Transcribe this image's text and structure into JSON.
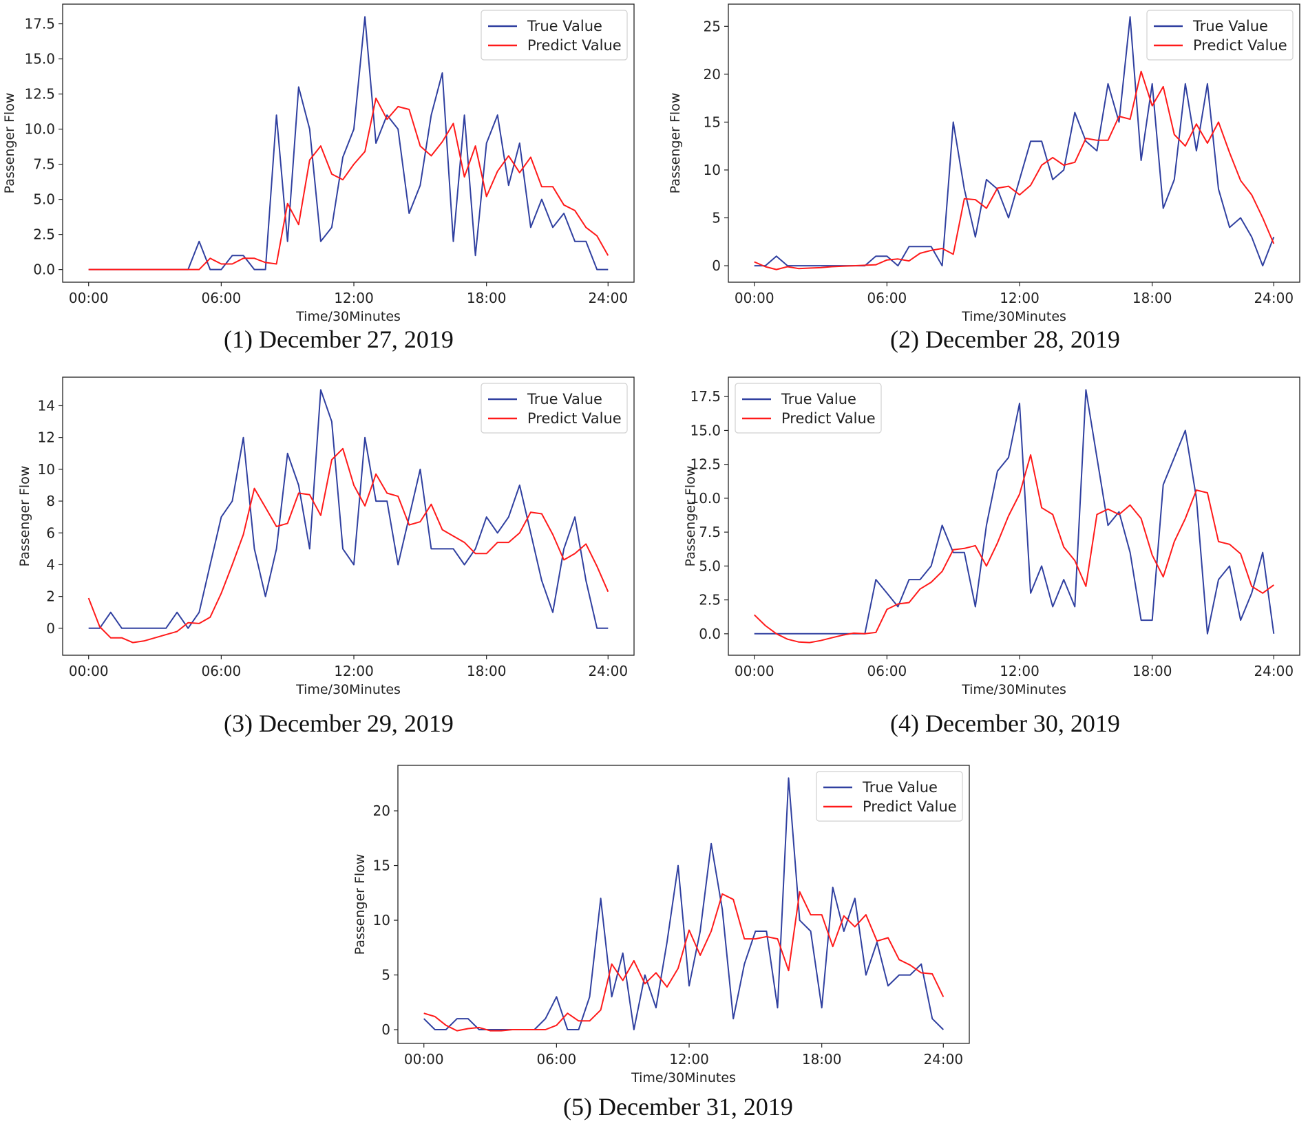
{
  "legend": {
    "true_label": "True Value",
    "predict_label": "Predict Value"
  },
  "colors": {
    "true": "#3040a0",
    "predict": "#ff1a1a"
  },
  "captions": [
    "(1) December 27, 2019",
    "(2) December 28, 2019",
    "(3) December 29, 2019",
    "(4) December 30, 2019",
    "(5) December 31, 2019"
  ],
  "chart_data": [
    {
      "type": "line",
      "title": "(1) December 27, 2019",
      "xlabel": "Time/30Minutes",
      "ylabel": "Passenger Flow",
      "xticks": [
        0,
        12,
        24,
        36,
        47
      ],
      "xtick_labels": [
        "00:00",
        "06:00",
        "12:00",
        "18:00",
        "24:00"
      ],
      "yticks": [
        0,
        2.5,
        5,
        7.5,
        10,
        12.5,
        15,
        17.5
      ],
      "ytick_labels": [
        "0.0",
        "2.5",
        "5.0",
        "7.5",
        "10.0",
        "12.5",
        "15.0",
        "17.5"
      ],
      "legend_position": "top-right",
      "series": [
        {
          "name": "True Value",
          "values": [
            0,
            0,
            0,
            0,
            0,
            0,
            0,
            0,
            0,
            0,
            2,
            0,
            0,
            1,
            1,
            0,
            0,
            11,
            2,
            13,
            10,
            2,
            3,
            8,
            10,
            18,
            9,
            11,
            10,
            4,
            6,
            11,
            14,
            2,
            11,
            1,
            9,
            11,
            6,
            9,
            3,
            5,
            3,
            4,
            2,
            2,
            0,
            0
          ]
        },
        {
          "name": "Predict Value",
          "values": [
            0,
            0,
            0,
            0,
            0,
            0,
            0,
            0,
            0,
            0,
            0,
            0.8,
            0.4,
            0.4,
            0.8,
            0.8,
            0.5,
            0.4,
            4.7,
            3.2,
            7.8,
            8.8,
            6.8,
            6.4,
            7.5,
            8.4,
            12.2,
            10.7,
            11.6,
            11.4,
            8.8,
            8.1,
            9.1,
            10.4,
            6.6,
            8.8,
            5.2,
            7.0,
            8.1,
            6.9,
            8.0,
            5.9,
            5.9,
            4.6,
            4.2,
            3.0,
            2.4,
            1.0
          ]
        }
      ]
    },
    {
      "type": "line",
      "title": "(2) December 28, 2019",
      "xlabel": "Time/30Minutes",
      "ylabel": "Passenger Flow",
      "xticks": [
        0,
        12,
        24,
        36,
        47
      ],
      "xtick_labels": [
        "00:00",
        "06:00",
        "12:00",
        "18:00",
        "24:00"
      ],
      "yticks": [
        0,
        5,
        10,
        15,
        20,
        25
      ],
      "ytick_labels": [
        "0",
        "5",
        "10",
        "15",
        "20",
        "25"
      ],
      "legend_position": "top-right",
      "series": [
        {
          "name": "True Value",
          "values": [
            0,
            0,
            1,
            0,
            0,
            0,
            0,
            0,
            0,
            0,
            0,
            1,
            1,
            0,
            2,
            2,
            2,
            0,
            15,
            8,
            3,
            9,
            8,
            5,
            9,
            13,
            13,
            9,
            10,
            16,
            13,
            12,
            19,
            15,
            26,
            11,
            19,
            6,
            9,
            19,
            12,
            19,
            8,
            4,
            5,
            3,
            0,
            3
          ]
        },
        {
          "name": "Predict Value",
          "values": [
            0.4,
            -0.1,
            -0.4,
            -0.1,
            -0.3,
            -0.25,
            -0.2,
            -0.1,
            -0.05,
            0,
            0.05,
            0.1,
            0.6,
            0.7,
            0.5,
            1.3,
            1.6,
            1.8,
            1.2,
            7.0,
            6.9,
            6.0,
            8.1,
            8.3,
            7.4,
            8.4,
            10.5,
            11.3,
            10.5,
            10.8,
            13.3,
            13.1,
            13.1,
            15.6,
            15.3,
            20.3,
            16.7,
            18.7,
            13.7,
            12.5,
            14.8,
            12.8,
            15.0,
            11.8,
            8.9,
            7.4,
            5.0,
            2.3
          ]
        }
      ]
    },
    {
      "type": "line",
      "title": "(3) December 29, 2019",
      "xlabel": "Time/30Minutes",
      "ylabel": "Passenger Flow",
      "xticks": [
        0,
        12,
        24,
        36,
        47
      ],
      "xtick_labels": [
        "00:00",
        "06:00",
        "12:00",
        "18:00",
        "24:00"
      ],
      "yticks": [
        0,
        2,
        4,
        6,
        8,
        10,
        12,
        14
      ],
      "ytick_labels": [
        "0",
        "2",
        "4",
        "6",
        "8",
        "10",
        "12",
        "14"
      ],
      "legend_position": "top-right",
      "series": [
        {
          "name": "True Value",
          "values": [
            0,
            0,
            1,
            0,
            0,
            0,
            0,
            0,
            1,
            0,
            1,
            4,
            7,
            8,
            12,
            5,
            2,
            5,
            11,
            9,
            5,
            15,
            13,
            5,
            4,
            12,
            8,
            8,
            4,
            7,
            10,
            5,
            5,
            5,
            4,
            5,
            7,
            6,
            7,
            9,
            6,
            3,
            1,
            5,
            7,
            3,
            0,
            0
          ]
        },
        {
          "name": "Predict Value",
          "values": [
            1.9,
            0.1,
            -0.6,
            -0.6,
            -0.9,
            -0.8,
            -0.6,
            -0.4,
            -0.2,
            0.35,
            0.3,
            0.7,
            2.2,
            4.0,
            5.9,
            8.8,
            7.6,
            6.4,
            6.6,
            8.5,
            8.4,
            7.1,
            10.6,
            11.3,
            9.0,
            7.7,
            9.7,
            8.5,
            8.3,
            6.5,
            6.7,
            7.8,
            6.2,
            5.8,
            5.4,
            4.7,
            4.7,
            5.4,
            5.4,
            6.0,
            7.3,
            7.2,
            5.9,
            4.3,
            4.7,
            5.3,
            3.9,
            2.3
          ]
        }
      ]
    },
    {
      "type": "line",
      "title": "(4) December 30, 2019",
      "xlabel": "Time/30Minutes",
      "ylabel": "Passenger Flow",
      "xticks": [
        0,
        12,
        24,
        36,
        47
      ],
      "xtick_labels": [
        "00:00",
        "06:00",
        "12:00",
        "18:00",
        "24:00"
      ],
      "yticks": [
        0,
        2.5,
        5,
        7.5,
        10,
        12.5,
        15,
        17.5
      ],
      "ytick_labels": [
        "0.0",
        "2.5",
        "5.0",
        "7.5",
        "10.0",
        "12.5",
        "15.0",
        "17.5"
      ],
      "legend_position": "top-left",
      "series": [
        {
          "name": "True Value",
          "values": [
            0,
            0,
            0,
            0,
            0,
            0,
            0,
            0,
            0,
            0,
            0,
            4,
            3,
            2,
            4,
            4,
            5,
            8,
            6,
            6,
            2,
            8,
            12,
            13,
            17,
            3,
            5,
            2,
            4,
            2,
            18,
            13,
            8,
            9,
            6,
            1,
            1,
            11,
            13,
            15,
            10,
            0,
            4,
            5,
            1,
            3,
            6,
            0
          ]
        },
        {
          "name": "Predict Value",
          "values": [
            1.4,
            0.6,
            0,
            -0.4,
            -0.6,
            -0.65,
            -0.5,
            -0.3,
            -0.1,
            0.05,
            0,
            0.1,
            1.8,
            2.2,
            2.3,
            3.3,
            3.8,
            4.6,
            6.2,
            6.3,
            6.5,
            5.0,
            6.7,
            8.7,
            10.3,
            13.2,
            9.3,
            8.8,
            6.4,
            5.4,
            3.5,
            8.8,
            9.2,
            8.8,
            9.5,
            8.5,
            5.8,
            4.2,
            6.8,
            8.5,
            10.6,
            10.4,
            6.8,
            6.6,
            5.9,
            3.5,
            3.0,
            3.6
          ]
        }
      ]
    },
    {
      "type": "line",
      "title": "(5) December 31, 2019",
      "xlabel": "Time/30Minutes",
      "ylabel": "Passenger Flow",
      "xticks": [
        0,
        12,
        24,
        36,
        47
      ],
      "xtick_labels": [
        "00:00",
        "06:00",
        "12:00",
        "18:00",
        "24:00"
      ],
      "yticks": [
        0,
        5,
        10,
        15,
        20
      ],
      "ytick_labels": [
        "0",
        "5",
        "10",
        "15",
        "20"
      ],
      "legend_position": "top-right",
      "series": [
        {
          "name": "True Value",
          "values": [
            1,
            0,
            0,
            1,
            1,
            0,
            0,
            0,
            0,
            0,
            0,
            1,
            3,
            0,
            0,
            3,
            12,
            3,
            7,
            0,
            5,
            2,
            8,
            15,
            4,
            9,
            17,
            11,
            1,
            6,
            9,
            9,
            2,
            23,
            10,
            9,
            2,
            13,
            9,
            12,
            5,
            8,
            4,
            5,
            5,
            6,
            1,
            0
          ]
        },
        {
          "name": "Predict Value",
          "values": [
            1.5,
            1.2,
            0.4,
            -0.1,
            0.1,
            0.2,
            -0.1,
            -0.1,
            0,
            0,
            0,
            0,
            0.4,
            1.5,
            0.8,
            0.8,
            1.8,
            6.0,
            4.5,
            6.3,
            4.2,
            5.2,
            3.9,
            5.6,
            9.1,
            6.8,
            9.0,
            12.4,
            11.9,
            8.3,
            8.3,
            8.5,
            8.3,
            5.4,
            12.6,
            10.5,
            10.5,
            7.6,
            10.4,
            9.4,
            10.5,
            8.1,
            8.4,
            6.4,
            5.9,
            5.2,
            5.1,
            3.0
          ]
        }
      ]
    }
  ]
}
